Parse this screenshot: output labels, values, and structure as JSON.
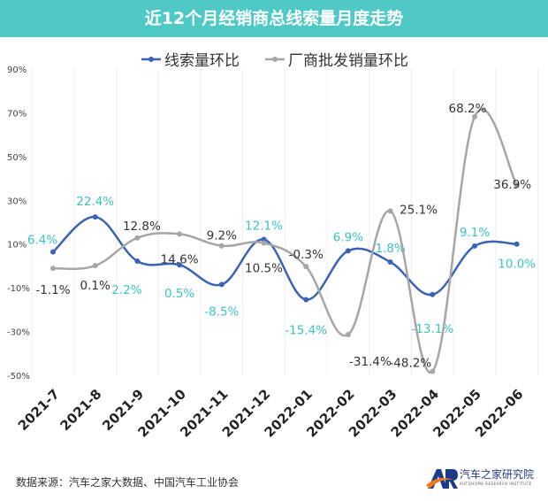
{
  "chart_data": {
    "type": "line",
    "title": "近12个月经销商总线索量月度走势",
    "categories": [
      "2021-7",
      "2021-8",
      "2021-9",
      "2021-10",
      "2021-11",
      "2021-12",
      "2022-01",
      "2022-02",
      "2022-03",
      "2022-04",
      "2022-05",
      "2022-06"
    ],
    "series": [
      {
        "name": "线索量环比",
        "color": "#3a63b8",
        "label_color": "#3cc3c3",
        "values": [
          6.4,
          22.4,
          2.2,
          0.5,
          -8.5,
          12.1,
          -15.4,
          6.9,
          1.8,
          -13.1,
          9.1,
          10.0
        ]
      },
      {
        "name": "厂商批发销量环比",
        "color": "#a6a6a6",
        "label_color": "#333333",
        "values": [
          -1.1,
          0.1,
          12.8,
          14.6,
          9.2,
          10.5,
          -0.3,
          -31.4,
          25.1,
          -48.2,
          68.2,
          36.9
        ]
      }
    ],
    "yticks": [
      90,
      70,
      50,
      30,
      10,
      -10,
      -30,
      -50
    ],
    "ylim": [
      -50,
      90
    ],
    "yunit": "%",
    "smooth": true,
    "legend": "top"
  },
  "footer": {
    "source": "数据来源：汽车之家大数据、中国汽车工业协会"
  },
  "logo": {
    "mark": "AR",
    "name": "汽车之家研究院",
    "sub": "AUTOHOME RESEARCH INSTITUTE"
  }
}
